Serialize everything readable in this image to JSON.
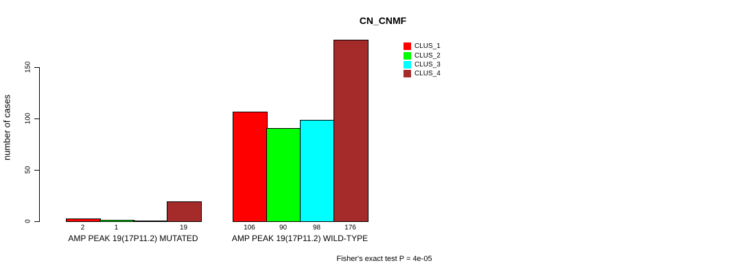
{
  "chart_data": {
    "type": "bar",
    "title": "CN_CNMF",
    "ylabel": "number of cases",
    "ylim": [
      0,
      180
    ],
    "yticks": [
      0,
      50,
      100,
      150
    ],
    "grid": false,
    "legend_position": "top-right",
    "categories": [
      "AMP PEAK 19(17P11.2) MUTATED",
      "AMP PEAK 19(17P11.2) WILD-TYPE"
    ],
    "series": [
      {
        "name": "CLUS_1",
        "color": "#FF0000",
        "values": [
          2,
          106
        ]
      },
      {
        "name": "CLUS_2",
        "color": "#00FF00",
        "values": [
          1,
          90
        ]
      },
      {
        "name": "CLUS_3",
        "color": "#00FFFF",
        "values": [
          0,
          98
        ]
      },
      {
        "name": "CLUS_4",
        "color": "#A52A2A",
        "values": [
          19,
          176
        ]
      }
    ],
    "bar_value_labels": [
      [
        "2",
        "1",
        "",
        "19"
      ],
      [
        "106",
        "90",
        "98",
        "176"
      ]
    ],
    "annotation": "Fisher's exact test P = 4e-05"
  }
}
